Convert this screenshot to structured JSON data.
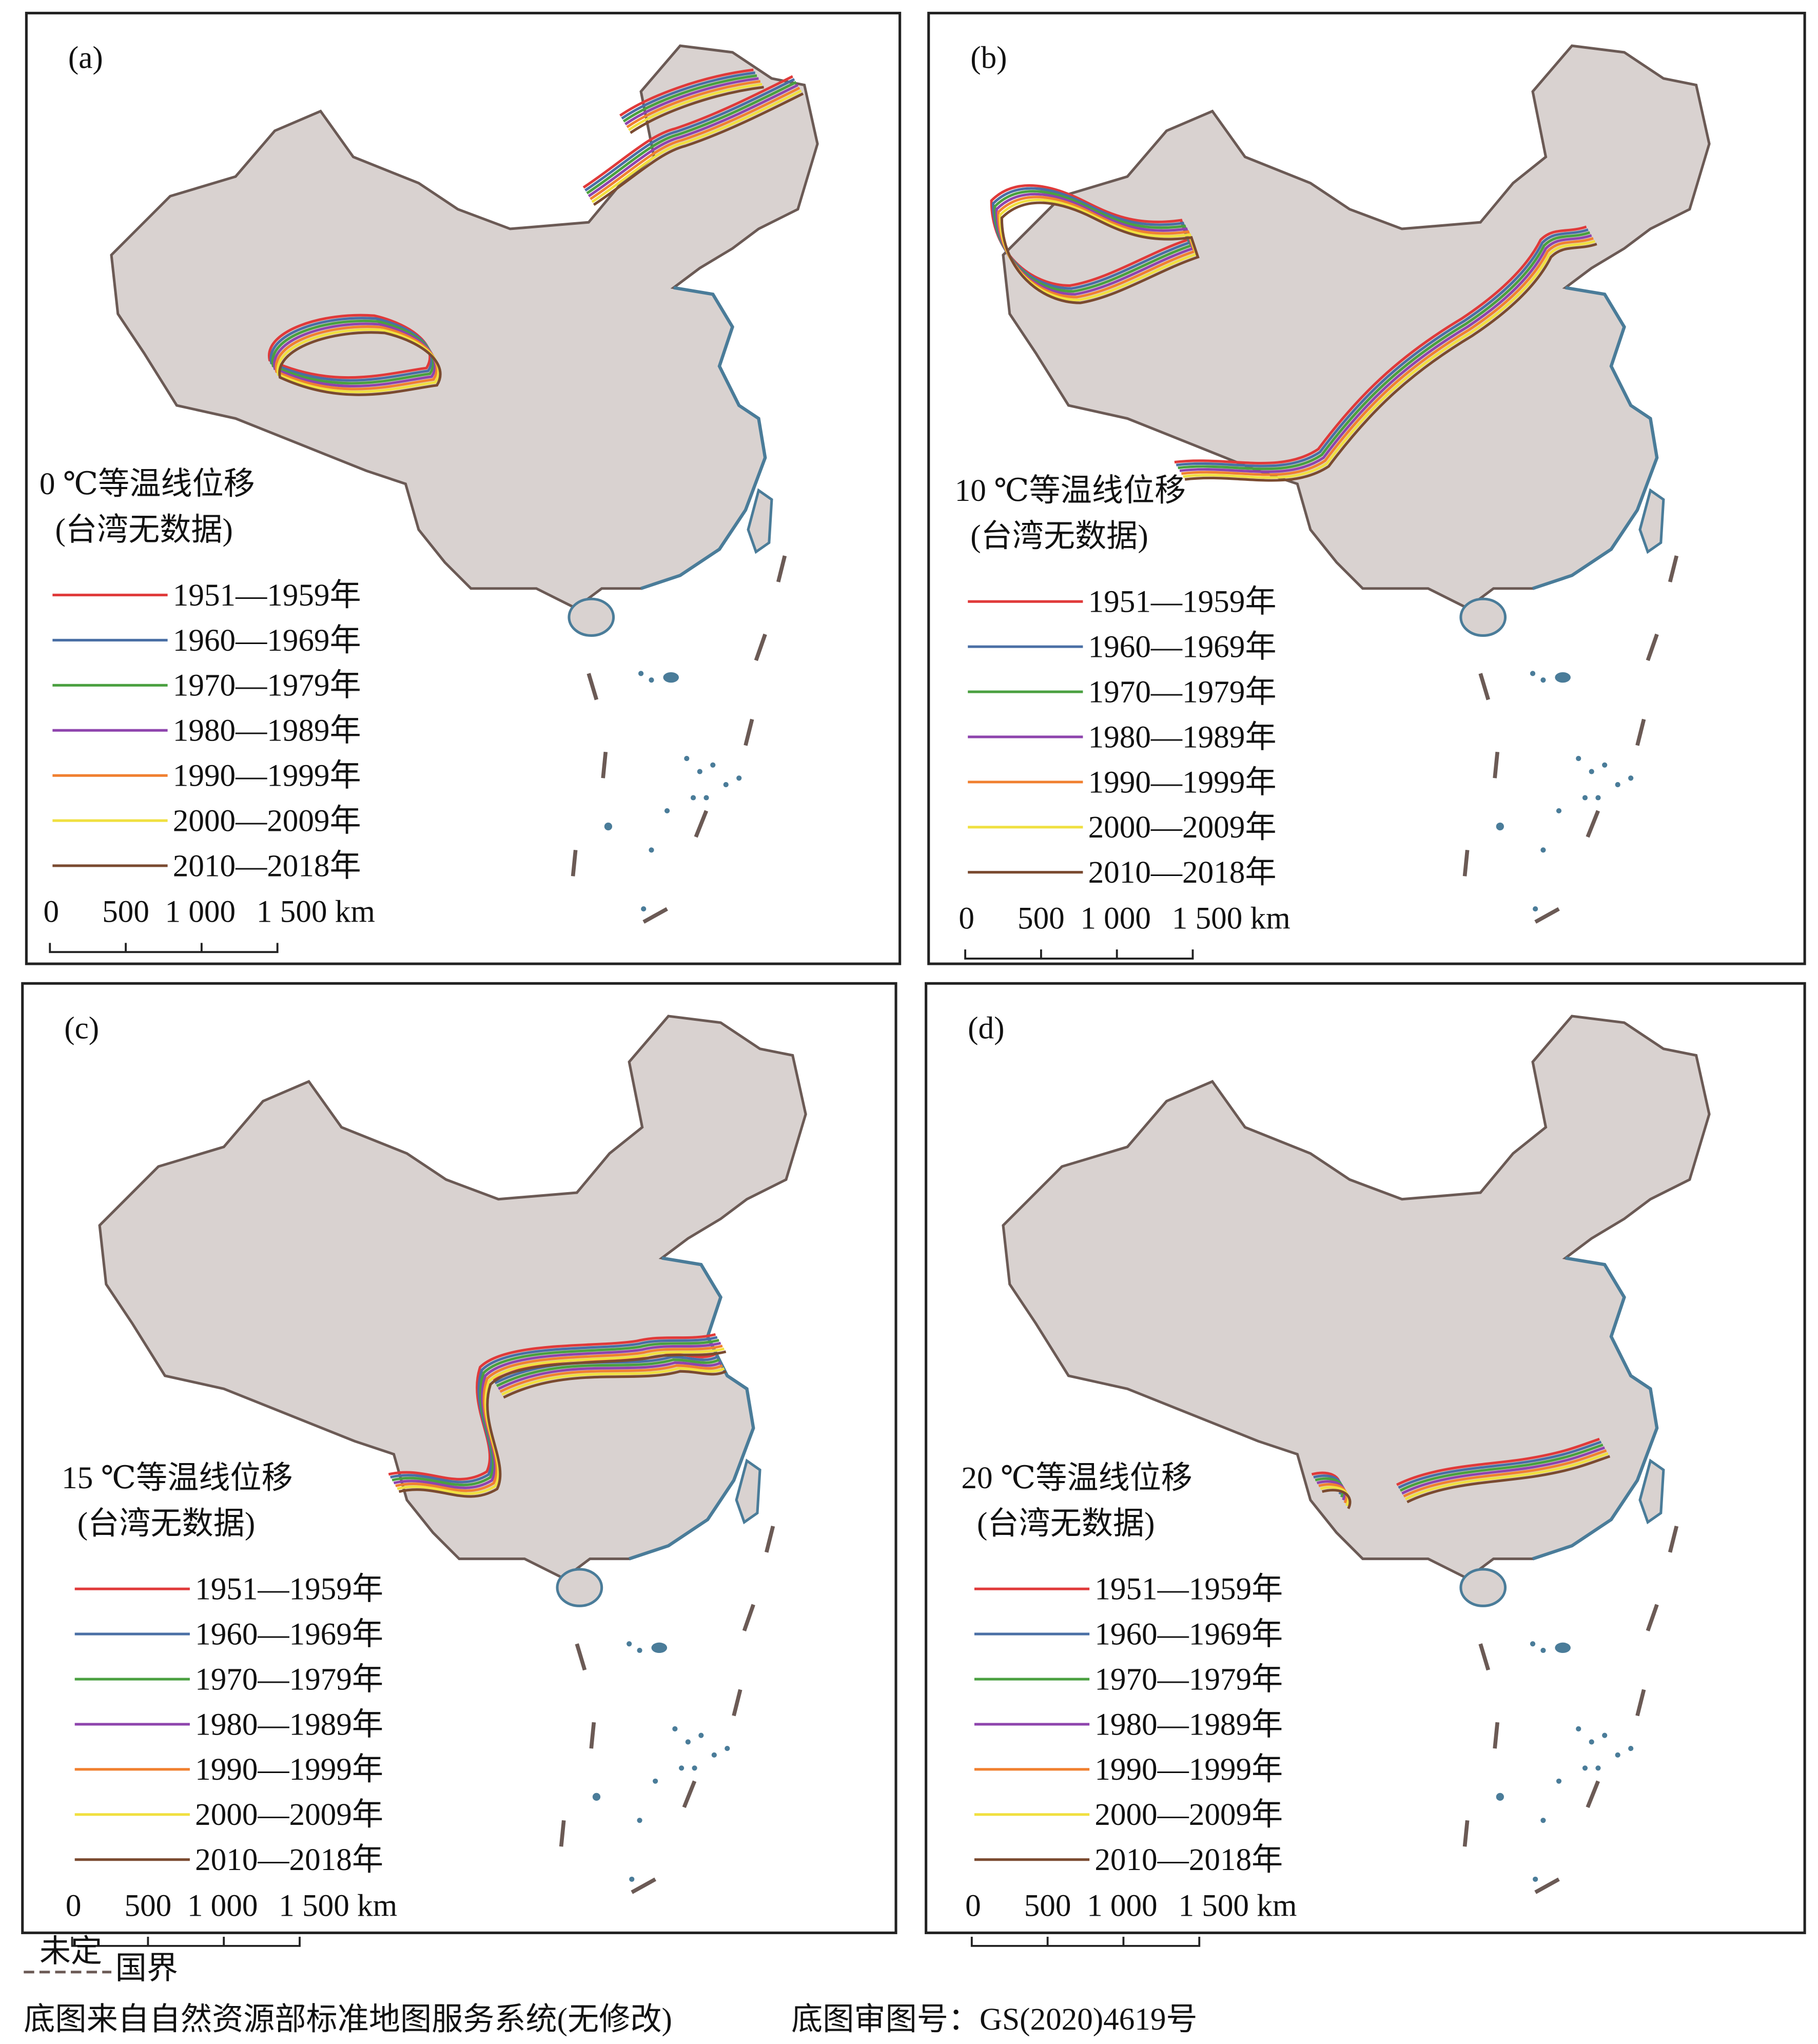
{
  "panels": [
    {
      "label": "(a)",
      "legend_title": "0 ℃等温线位移",
      "legend_subtitle": "(台湾无数据)",
      "scale_labels": [
        "0",
        "500",
        "1 000",
        "1 500 km"
      ]
    },
    {
      "label": "(b)",
      "legend_title": "10 ℃等温线位移",
      "legend_subtitle": "(台湾无数据)",
      "scale_labels": [
        "0",
        "500",
        "1 000",
        "1 500 km"
      ]
    },
    {
      "label": "(c)",
      "legend_title": "15 ℃等温线位移",
      "legend_subtitle": "(台湾无数据)",
      "scale_labels": [
        "0",
        "500",
        "1 000",
        "1 500 km"
      ]
    },
    {
      "label": "(d)",
      "legend_title": "20 ℃等温线位移",
      "legend_subtitle": "(台湾无数据)",
      "scale_labels": [
        "0",
        "500",
        "1 000",
        "1 500 km"
      ]
    }
  ],
  "legend": [
    {
      "name": "1951—1959年",
      "color": "#e03a3a"
    },
    {
      "name": "1960—1969年",
      "color": "#4a6fa5"
    },
    {
      "name": "1970—1979年",
      "color": "#4aa040"
    },
    {
      "name": "1980—1989年",
      "color": "#8e44ad"
    },
    {
      "name": "1990—1999年",
      "color": "#f08030"
    },
    {
      "name": "2000—2009年",
      "color": "#f0e040"
    },
    {
      "name": "2010—2018年",
      "color": "#7a4a30"
    }
  ],
  "footer": {
    "undetermined": "未定",
    "border": "国界",
    "source": "底图来自自然资源部标准地图服务系统(无修改)",
    "approval": "底图审图号：GS(2020)4619号"
  }
}
